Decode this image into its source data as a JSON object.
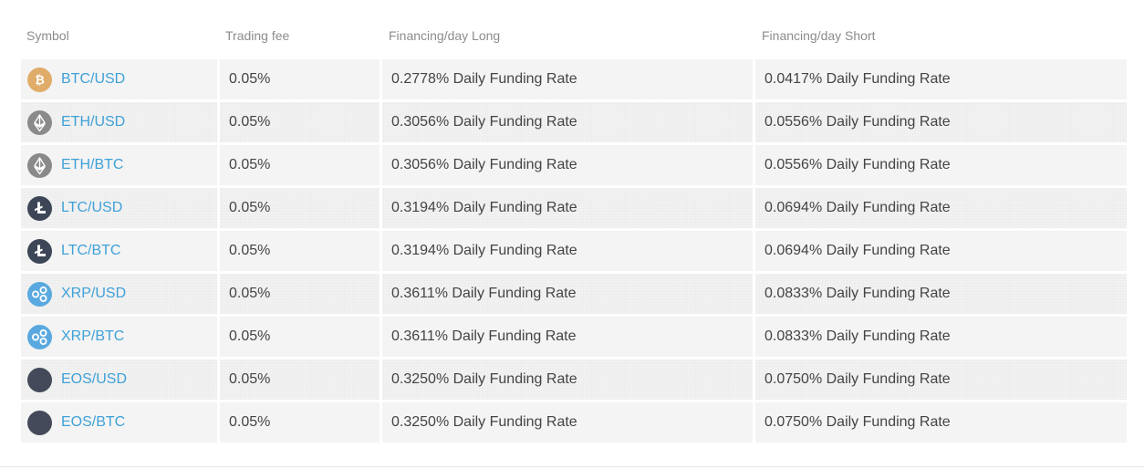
{
  "table": {
    "headers": {
      "symbol": "Symbol",
      "fee": "Trading fee",
      "long": "Financing/day Long",
      "short": "Financing/day Short"
    },
    "rows": [
      {
        "symbol": "BTC/USD",
        "icon": "btc-icon",
        "color": "#e0ac6a",
        "fee": "0.05%",
        "long": "0.2778% Daily Funding Rate",
        "short": "0.0417% Daily Funding Rate"
      },
      {
        "symbol": "ETH/USD",
        "icon": "eth-icon",
        "color": "#8a8a8a",
        "fee": "0.05%",
        "long": "0.3056% Daily Funding Rate",
        "short": "0.0556% Daily Funding Rate"
      },
      {
        "symbol": "ETH/BTC",
        "icon": "eth-icon",
        "color": "#8a8a8a",
        "fee": "0.05%",
        "long": "0.3056% Daily Funding Rate",
        "short": "0.0556% Daily Funding Rate"
      },
      {
        "symbol": "LTC/USD",
        "icon": "ltc-icon",
        "color": "#3d4657",
        "fee": "0.05%",
        "long": "0.3194% Daily Funding Rate",
        "short": "0.0694% Daily Funding Rate"
      },
      {
        "symbol": "LTC/BTC",
        "icon": "ltc-icon",
        "color": "#3d4657",
        "fee": "0.05%",
        "long": "0.3194% Daily Funding Rate",
        "short": "0.0694% Daily Funding Rate"
      },
      {
        "symbol": "XRP/USD",
        "icon": "xrp-icon",
        "color": "#59a9e0",
        "fee": "0.05%",
        "long": "0.3611% Daily Funding Rate",
        "short": "0.0833% Daily Funding Rate"
      },
      {
        "symbol": "XRP/BTC",
        "icon": "xrp-icon",
        "color": "#59a9e0",
        "fee": "0.05%",
        "long": "0.3611% Daily Funding Rate",
        "short": "0.0833% Daily Funding Rate"
      },
      {
        "symbol": "EOS/USD",
        "icon": "eos-icon",
        "color": "#444a5a",
        "fee": "0.05%",
        "long": "0.3250% Daily Funding Rate",
        "short": "0.0750% Daily Funding Rate"
      },
      {
        "symbol": "EOS/BTC",
        "icon": "eos-icon",
        "color": "#444a5a",
        "fee": "0.05%",
        "long": "0.3250% Daily Funding Rate",
        "short": "0.0750% Daily Funding Rate"
      }
    ]
  }
}
